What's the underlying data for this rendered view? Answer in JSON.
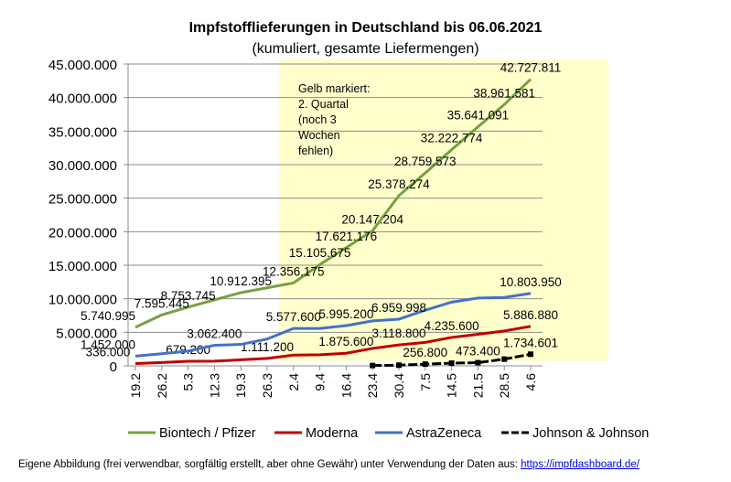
{
  "chart_data": {
    "type": "line",
    "title": "Impfstofflieferungen in Deutschland bis 06.06.2021",
    "subtitle": "(kumuliert, gesamte Liefermengen)",
    "xlabel": "",
    "ylabel": "",
    "ylim": [
      0,
      45000000
    ],
    "yticks": [
      "0",
      "5.000.000",
      "10.000.000",
      "15.000.000",
      "20.000.000",
      "25.000.000",
      "30.000.000",
      "35.000.000",
      "40.000.000",
      "45.000.000"
    ],
    "categories": [
      "19.2",
      "26.2",
      "5.3",
      "12.3",
      "19.3",
      "26.3",
      "2.4",
      "9.4",
      "16.4",
      "23.4",
      "30.4",
      "7.5",
      "14.5",
      "21.5",
      "28.5",
      "4.6"
    ],
    "grid": true,
    "legend": "bottom",
    "highlight": {
      "from": "26.3",
      "to": "4.6",
      "color": "#ffffcc",
      "text": [
        "Gelb markiert:",
        "2. Quartal",
        "(noch 3",
        "Wochen",
        "fehlen)"
      ]
    },
    "series": [
      {
        "name": "Biontech / Pfizer",
        "color": "#77a040",
        "values": [
          5740995,
          7595445,
          8753745,
          null,
          10912395,
          null,
          12356175,
          15105675,
          17621176,
          20147204,
          25378274,
          28759573,
          32222774,
          35641091,
          38961581,
          42727811
        ],
        "labels": [
          "5.740.995",
          "7.595.445",
          "8.753.745",
          null,
          "10.912.395",
          null,
          "12.356.175",
          "15.105.675",
          "17.621.176",
          "20.147.204",
          "25.378.274",
          "28.759.573",
          "32.222.774",
          "35.641.091",
          "38.961.581",
          "42.727.811"
        ]
      },
      {
        "name": "Moderna",
        "color": "#c00000",
        "values": [
          336000,
          500000,
          679200,
          700000,
          900000,
          1111200,
          1600000,
          1650000,
          1875600,
          2600000,
          3118800,
          3500000,
          4235600,
          4700000,
          5200000,
          5886880
        ],
        "labels": [
          "336.000",
          null,
          "679.200",
          null,
          null,
          "1.111.200",
          null,
          null,
          "1.875.600",
          null,
          "3.118.800",
          null,
          "4.235.600",
          null,
          null,
          "5.886.880"
        ]
      },
      {
        "name": "AstraZeneca",
        "color": "#4472c4",
        "values": [
          1452000,
          1800000,
          2200000,
          3062400,
          3200000,
          4000000,
          5577600,
          5577600,
          5995200,
          6700000,
          6959998,
          8300000,
          9500000,
          10100000,
          10200000,
          10803950
        ],
        "labels": [
          "1.452.000",
          null,
          null,
          "3.062.400",
          null,
          null,
          "5.577.600",
          null,
          "5.995.200",
          null,
          "6.959.998",
          null,
          null,
          null,
          null,
          "10.803.950"
        ]
      },
      {
        "name": "Johnson & Johnson",
        "color": "#000000",
        "values": [
          null,
          null,
          null,
          null,
          null,
          null,
          null,
          null,
          null,
          50000,
          100000,
          256800,
          400000,
          473400,
          1000000,
          1734601
        ],
        "labels": [
          null,
          null,
          null,
          null,
          null,
          null,
          null,
          null,
          null,
          null,
          null,
          "256.800",
          null,
          "473.400",
          null,
          "1.734.601"
        ]
      }
    ]
  },
  "footer": {
    "text": "Eigene Abbildung  (frei verwendbar, sorgfältig erstellt, aber ohne Gewähr) unter Verwendung  der Daten aus: ",
    "link": "https://impfdashboard.de/"
  }
}
